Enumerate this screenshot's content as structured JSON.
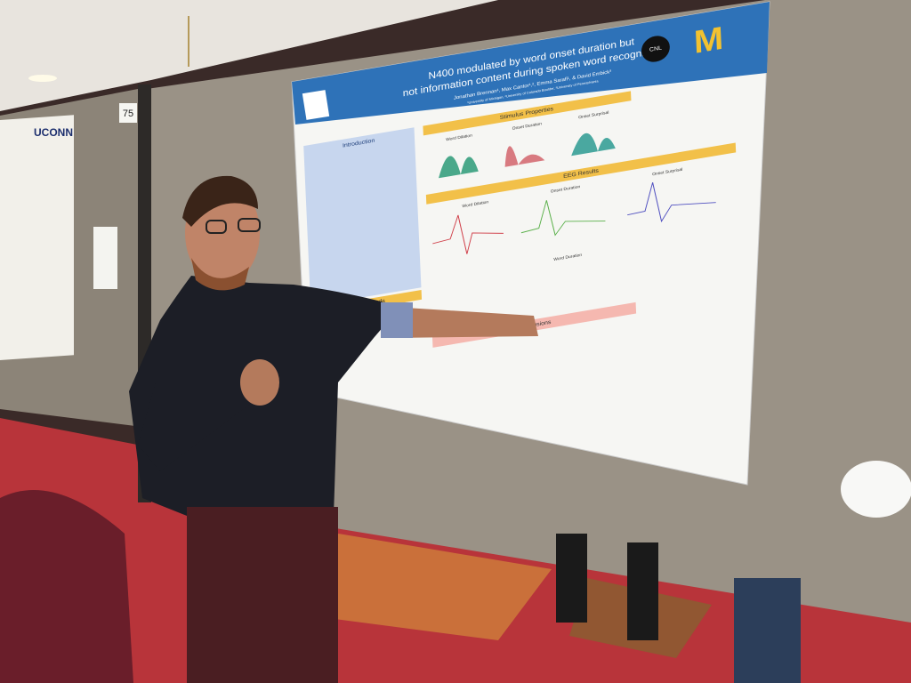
{
  "booth_number": "75",
  "left_poster": {
    "title": "UCONN"
  },
  "poster": {
    "title_lines": [
      "N400 modulated by word onset duration but",
      "not information content during spoken word recognition"
    ],
    "authors": "Jonathan Brennan¹, Max Cantor¹,², Emma Sarafi¹, & David Embick³",
    "affiliations": "¹University of Michigan, ²University of Colorado Boulder, ³University of Pennsylvania",
    "logo": "CNL",
    "sections": {
      "introduction": "Introduction",
      "stimulus": "Stimulus Properties",
      "eeg_results": "EEG Results",
      "eeg_methods": "EEG Methods",
      "conclusions": "Conclusions"
    },
    "stimulus_plots": [
      "Word Dilation",
      "Onset Duration",
      "Onset Surprisal"
    ],
    "eeg_plots": [
      "Word Dilation",
      "Onset Duration",
      "Onset Surprisal",
      "Word Duration"
    ]
  }
}
